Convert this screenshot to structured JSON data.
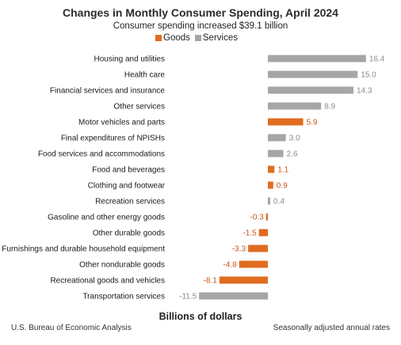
{
  "chart_data": {
    "type": "bar",
    "orientation": "horizontal",
    "title": "Changes in Monthly Consumer Spending, April 2024",
    "subtitle": "Consumer spending increased $39.1 billion",
    "xlabel": "Billions of dollars",
    "legend": [
      {
        "name": "Goods",
        "color": "#e06c1f"
      },
      {
        "name": "Services",
        "color": "#a6a6a6"
      }
    ],
    "legend_position": "top",
    "grid": false,
    "xlim": [
      -12,
      17
    ],
    "categories": [
      "Housing and utilities",
      "Health care",
      "Financial services and insurance",
      "Other services",
      "Motor vehicles and parts",
      "Final expenditures of NPISHs",
      "Food services and accommodations",
      "Food and beverages",
      "Clothing and footwear",
      "Recreation services",
      "Gasoline and other energy goods",
      "Other durable goods",
      "Furnishings and durable household equipment",
      "Other nondurable goods",
      "Recreational goods and vehicles",
      "Transportation services"
    ],
    "values": [
      16.4,
      15.0,
      14.3,
      8.9,
      5.9,
      3.0,
      2.6,
      1.1,
      0.9,
      0.4,
      -0.3,
      -1.5,
      -3.3,
      -4.8,
      -8.1,
      -11.5
    ],
    "labels": [
      "16.4",
      "15.0",
      "14.3",
      "8.9",
      "5.9",
      "3.0",
      "2.6",
      "1.1",
      "0.9",
      "0.4",
      "-0.3",
      "-1.5",
      "-3.3",
      "-4.8",
      "-8.1",
      "-11.5"
    ],
    "group": [
      "Services",
      "Services",
      "Services",
      "Services",
      "Goods",
      "Services",
      "Services",
      "Goods",
      "Goods",
      "Services",
      "Goods",
      "Goods",
      "Goods",
      "Goods",
      "Goods",
      "Services"
    ]
  },
  "footer": {
    "source": "U.S. Bureau of Economic Analysis",
    "note": "Seasonally adjusted annual rates"
  }
}
